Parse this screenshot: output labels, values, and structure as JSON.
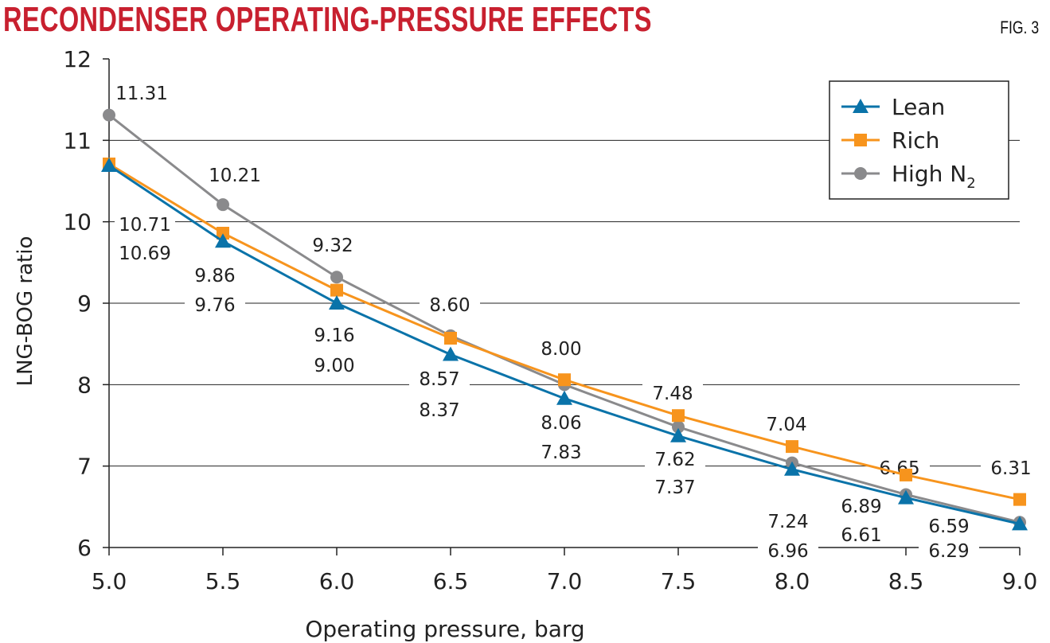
{
  "title": "RECONDENSER OPERATING-PRESSURE EFFECTS",
  "figure_label": "FIG. 3",
  "chart_data": {
    "type": "line",
    "title": "RECONDENSER OPERATING-PRESSURE EFFECTS",
    "xlabel": "Operating pressure, barg",
    "ylabel": "LNG-BOG ratio",
    "x": [
      5.0,
      5.5,
      6.0,
      6.5,
      7.0,
      7.5,
      8.0,
      8.5,
      9.0
    ],
    "x_tick_labels": [
      "5.0",
      "5.5",
      "6.0",
      "6.5",
      "7.0",
      "7.5",
      "8.0",
      "8.5",
      "9.0"
    ],
    "y_tick_labels": [
      "6",
      "7",
      "8",
      "9",
      "10",
      "11",
      "12"
    ],
    "xlim": [
      5.0,
      9.0
    ],
    "ylim": [
      6,
      12
    ],
    "grid": "horizontal",
    "legend": "top-right",
    "series": [
      {
        "name": "Lean",
        "marker": "triangle",
        "color": "#0a73a9",
        "values": [
          10.69,
          9.76,
          9.0,
          8.37,
          7.83,
          7.37,
          6.96,
          6.61,
          6.29
        ],
        "labels": [
          "10.69",
          "9.76",
          "9.00",
          "8.37",
          "7.83",
          "7.37",
          "6.96",
          "6.61",
          "6.29"
        ]
      },
      {
        "name": "Rich",
        "marker": "square",
        "color": "#f7941d",
        "values": [
          10.71,
          9.86,
          9.16,
          8.57,
          8.06,
          7.62,
          7.24,
          6.89,
          6.59
        ],
        "labels": [
          "10.71",
          "9.86",
          "9.16",
          "8.57",
          "8.06",
          "7.62",
          "7.24",
          "6.89",
          "6.59"
        ]
      },
      {
        "name": "High N2",
        "marker": "circle",
        "color": "#8a8a8c",
        "values": [
          11.31,
          10.21,
          9.32,
          8.6,
          8.0,
          7.48,
          7.04,
          6.65,
          6.31
        ],
        "labels": [
          "11.31",
          "10.21",
          "9.32",
          "8.60",
          "8.00",
          "7.48",
          "7.04",
          "6.65",
          "6.31"
        ]
      }
    ]
  }
}
